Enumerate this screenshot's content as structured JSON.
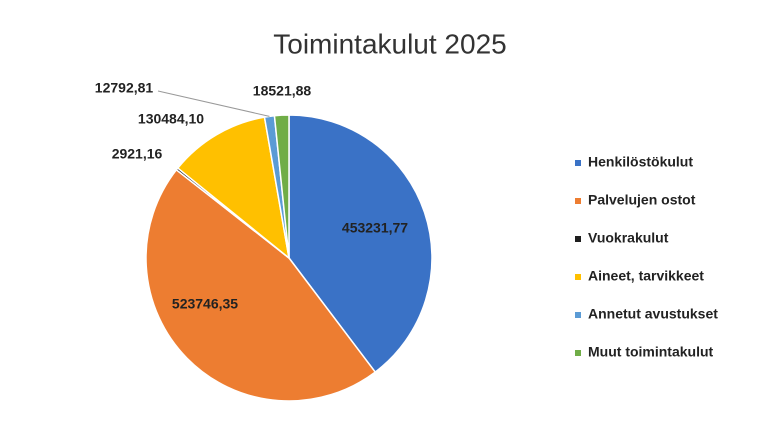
{
  "chart_data": {
    "type": "pie",
    "title": "Toimintakulut 2025",
    "categories": [
      "Henkilöstökulut",
      "Palvelujen ostot",
      "Vuokrakulut",
      "Aineet, tarvikkeet",
      "Annetut avustukset",
      "Muut toimintakulut"
    ],
    "values": [
      453231.77,
      523746.35,
      2921.16,
      130484.1,
      12792.81,
      18521.88
    ],
    "value_labels": [
      "453231,77",
      "523746,35",
      "2921,16",
      "130484,10",
      "12792,81",
      "18521,88"
    ],
    "colors": [
      "#3a72c6",
      "#ed7d31",
      "#1e1e1e",
      "#ffc000",
      "#5b9bd5",
      "#70ad47"
    ],
    "legend": "right"
  }
}
